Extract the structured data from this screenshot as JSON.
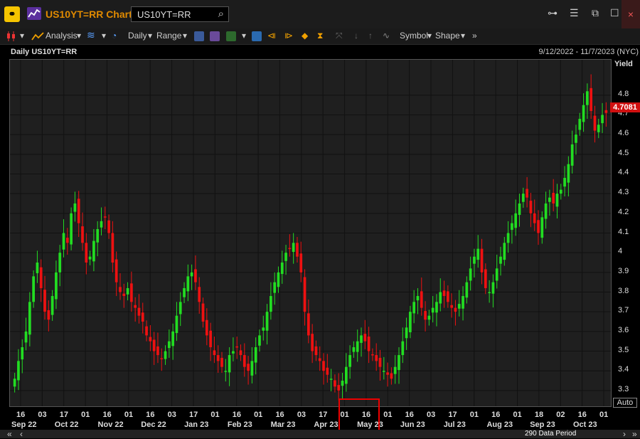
{
  "titlebar": {
    "title": "US10YT=RR Chart",
    "search_value": "US10YT=RR",
    "link_icon": "link-icon",
    "close_label": "×"
  },
  "toolbar": {
    "analysis_label": "Analysis",
    "interval_label": "Daily",
    "range_label": "Range",
    "symbol_label": "Symbol",
    "shape_label": "Shape"
  },
  "chart_header": {
    "title": "Daily US10YT=RR",
    "date_range": "9/12/2022 - 11/7/2023 (NYC)"
  },
  "chart_data": {
    "type": "candlestick",
    "ylabel": "Yield",
    "ylim": [
      3.22,
      4.98
    ],
    "yticks": [
      "4.8",
      "4.7",
      "4.6",
      "4.5",
      "4.4",
      "4.3",
      "4.2",
      "4.1",
      "4",
      "3.9",
      "3.8",
      "3.7",
      "3.6",
      "3.5",
      "3.4",
      "3.3"
    ],
    "last_price": "4.7081",
    "up_color": "#22dd22",
    "down_color": "#ee1111",
    "x_day_labels": [
      "16",
      "03",
      "17",
      "01",
      "16",
      "01",
      "16",
      "03",
      "17",
      "01",
      "16",
      "01",
      "16",
      "03",
      "17",
      "01",
      "16",
      "01",
      "16",
      "03",
      "17",
      "01",
      "16",
      "01",
      "18",
      "02",
      "16",
      "01"
    ],
    "x_month_labels": [
      "Sep 22",
      "Oct 22",
      "Nov 22",
      "Dec 22",
      "Jan 23",
      "Feb 23",
      "Mar 23",
      "Apr 23",
      "May 23",
      "Jun 23",
      "Jul 23",
      "Aug 23",
      "Sep 23",
      "Oct 23"
    ],
    "closes": [
      3.36,
      3.45,
      3.52,
      3.6,
      3.75,
      3.88,
      3.95,
      3.82,
      3.7,
      3.66,
      3.78,
      3.9,
      4.0,
      4.1,
      4.05,
      4.2,
      4.25,
      4.15,
      4.05,
      3.95,
      3.98,
      4.06,
      4.12,
      4.16,
      4.18,
      4.1,
      3.95,
      3.85,
      3.8,
      3.78,
      3.82,
      3.75,
      3.72,
      3.68,
      3.65,
      3.58,
      3.55,
      3.5,
      3.48,
      3.46,
      3.5,
      3.55,
      3.6,
      3.68,
      3.75,
      3.82,
      3.88,
      3.9,
      3.85,
      3.75,
      3.65,
      3.58,
      3.52,
      3.48,
      3.45,
      3.42,
      3.4,
      3.48,
      3.5,
      3.52,
      3.48,
      3.42,
      3.4,
      3.45,
      3.52,
      3.58,
      3.62,
      3.7,
      3.78,
      3.85,
      3.9,
      3.95,
      4.0,
      4.02,
      4.05,
      3.98,
      3.9,
      3.7,
      3.58,
      3.5,
      3.48,
      3.45,
      3.4,
      3.38,
      3.36,
      3.32,
      3.3,
      3.35,
      3.42,
      3.48,
      3.52,
      3.55,
      3.58,
      3.55,
      3.5,
      3.48,
      3.45,
      3.42,
      3.4,
      3.38,
      3.36,
      3.42,
      3.48,
      3.55,
      3.62,
      3.7,
      3.75,
      3.78,
      3.72,
      3.66,
      3.68,
      3.72,
      3.75,
      3.8,
      3.78,
      3.75,
      3.72,
      3.7,
      3.74,
      3.78,
      3.85,
      3.92,
      3.98,
      4.02,
      3.9,
      3.82,
      3.8,
      3.85,
      3.92,
      3.98,
      4.05,
      4.1,
      4.15,
      4.2,
      4.25,
      4.3,
      4.28,
      4.2,
      4.15,
      4.1,
      4.18,
      4.25,
      4.28,
      4.25,
      4.3,
      4.32,
      4.38,
      4.45,
      4.55,
      4.6,
      4.68,
      4.75,
      4.82,
      4.72,
      4.62,
      4.65,
      4.7,
      4.71
    ]
  },
  "xaxis_extra": {
    "auto_label": "Auto"
  },
  "footer": {
    "period_label": "290 Data Period"
  }
}
